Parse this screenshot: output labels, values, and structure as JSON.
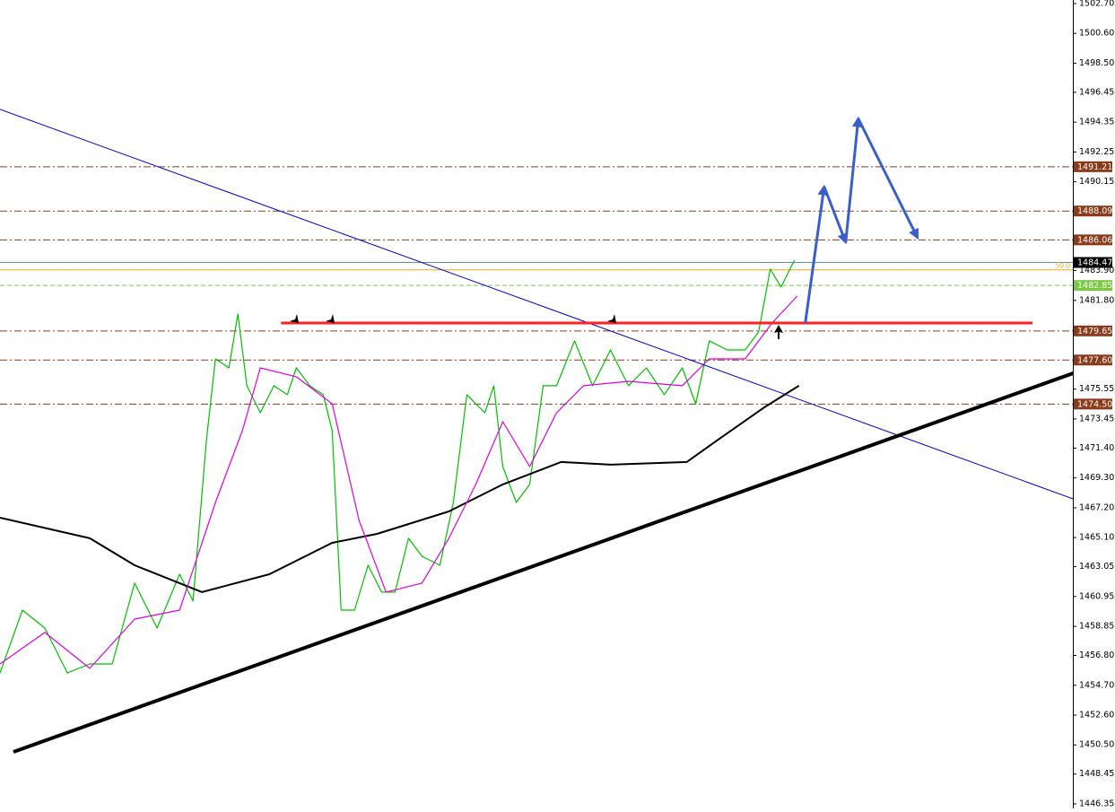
{
  "chart_data": {
    "type": "price",
    "xlim": [
      0,
      239
    ],
    "ylim": [
      1446.03,
      1502.95
    ],
    "yticks": [
      {
        "value": 1502.7,
        "label": "1502.70"
      },
      {
        "value": 1500.6,
        "label": "1500.60"
      },
      {
        "value": 1498.5,
        "label": "1498.50"
      },
      {
        "value": 1496.45,
        "label": "1496.45"
      },
      {
        "value": 1494.35,
        "label": "1494.35"
      },
      {
        "value": 1492.25,
        "label": "1492.25"
      },
      {
        "value": 1490.15,
        "label": "1490.15"
      },
      {
        "value": 1483.9,
        "label": "1483.90"
      },
      {
        "value": 1481.8,
        "label": "1481.80"
      },
      {
        "value": 1475.55,
        "label": "1475.55"
      },
      {
        "value": 1473.45,
        "label": "1473.45"
      },
      {
        "value": 1471.4,
        "label": "1471.40"
      },
      {
        "value": 1469.3,
        "label": "1469.30"
      },
      {
        "value": 1467.2,
        "label": "1467.20"
      },
      {
        "value": 1465.1,
        "label": "1465.10"
      },
      {
        "value": 1463.05,
        "label": "1463.05"
      },
      {
        "value": 1460.95,
        "label": "1460.95"
      },
      {
        "value": 1458.85,
        "label": "1458.85"
      },
      {
        "value": 1456.8,
        "label": "1456.80"
      },
      {
        "value": 1454.7,
        "label": "1454.70"
      },
      {
        "value": 1452.6,
        "label": "1452.60"
      },
      {
        "value": 1450.5,
        "label": "1450.50"
      },
      {
        "value": 1448.45,
        "label": "1448.45"
      },
      {
        "value": 1446.35,
        "label": "1446.35"
      }
    ],
    "series": [
      {
        "name": "price",
        "color": "#00c000",
        "x": [
          0,
          5,
          10,
          15,
          20,
          25,
          30,
          35,
          40,
          43,
          46,
          48,
          51,
          53,
          55,
          58,
          61,
          64,
          66,
          69,
          72,
          74,
          76,
          79,
          82,
          85,
          88,
          91,
          94,
          98,
          101,
          104,
          108,
          110,
          112,
          115,
          118,
          121,
          124,
          128,
          132,
          136,
          140,
          144,
          148,
          152,
          155,
          158,
          162,
          166,
          169,
          171.6,
          174,
          177
        ],
        "values": [
          1455.57,
          1459.99,
          1458.73,
          1455.57,
          1456.2,
          1456.2,
          1461.89,
          1458.73,
          1462.52,
          1460.63,
          1472.0,
          1477.68,
          1477.05,
          1480.84,
          1475.79,
          1473.89,
          1475.79,
          1475.16,
          1477.05,
          1475.79,
          1475.16,
          1472.63,
          1459.99,
          1459.99,
          1463.15,
          1461.26,
          1461.26,
          1465.05,
          1463.78,
          1463.15,
          1467.57,
          1475.16,
          1473.89,
          1475.79,
          1470.1,
          1467.57,
          1468.84,
          1475.79,
          1475.79,
          1478.95,
          1475.79,
          1478.31,
          1475.79,
          1477.05,
          1475.16,
          1477.05,
          1474.52,
          1478.95,
          1478.31,
          1478.31,
          1479.58,
          1484.0,
          1482.74,
          1484.63
        ]
      },
      {
        "name": "ma-slow",
        "color": "#000000",
        "x": [
          0,
          20,
          30,
          45,
          60,
          74,
          84,
          100,
          112,
          125,
          136,
          153,
          160,
          170,
          178
        ],
        "values": [
          1466.5,
          1465.05,
          1463.15,
          1461.26,
          1462.52,
          1464.73,
          1465.36,
          1466.94,
          1468.84,
          1470.42,
          1470.23,
          1470.42,
          1472.0,
          1474.21,
          1475.79
        ]
      },
      {
        "name": "ma-fast",
        "color": "#e000e0",
        "x": [
          0,
          10,
          20,
          30,
          40,
          48,
          54,
          58,
          66,
          74,
          80,
          86,
          94,
          100,
          106,
          112,
          118,
          124,
          130,
          140,
          152,
          158,
          166,
          172,
          177.6
        ],
        "values": [
          1456.2,
          1458.42,
          1455.89,
          1459.36,
          1459.99,
          1467.57,
          1472.63,
          1477.05,
          1476.42,
          1474.52,
          1466.31,
          1461.26,
          1461.89,
          1465.05,
          1468.84,
          1473.26,
          1470.1,
          1473.89,
          1475.79,
          1476.1,
          1475.79,
          1477.68,
          1477.68,
          1480.21,
          1482.1
        ]
      }
    ],
    "levels": [
      {
        "value": 1491.21,
        "label": "1491.21",
        "color": "#8b3a1a",
        "style": "dashdot"
      },
      {
        "value": 1488.09,
        "label": "1488.09",
        "color": "#8b3a1a",
        "style": "dashdot"
      },
      {
        "value": 1486.06,
        "label": "1486.06",
        "color": "#8b3a1a",
        "style": "dashdot"
      },
      {
        "value": 1484.47,
        "label": "1484.47",
        "color": "#000000",
        "style": "current"
      },
      {
        "value": 1482.85,
        "label": "1482.85",
        "color": "#7ac943",
        "style": "dashed"
      },
      {
        "value": 1479.65,
        "label": "1479.65",
        "color": "#8b3a1a",
        "style": "dashdot"
      },
      {
        "value": 1477.6,
        "label": "1477.60",
        "color": "#8b3a1a",
        "style": "dashdot"
      },
      {
        "value": 1474.5,
        "label": "1474.50",
        "color": "#8b3a1a",
        "style": "dashdot"
      }
    ],
    "fib_level": {
      "value": 1483.95,
      "label": "50.0",
      "color": "#f5a623"
    },
    "trendlines": [
      {
        "x": [
          0,
          239
        ],
        "y": [
          1495.25,
          1467.83
        ],
        "color": "#0000cd",
        "width": 1
      },
      {
        "x": [
          3,
          248
        ],
        "y": [
          1450.01,
          1477.68
        ],
        "color": "#000000",
        "width": 4
      },
      {
        "x": [
          62.6,
          230
        ],
        "y": [
          1480.21,
          1480.21
        ],
        "color": "#ff2020",
        "width": 3
      }
    ],
    "forecast": {
      "x": [
        179.4,
        183.6,
        188.4,
        191.2,
        204.4
      ],
      "y": [
        1480.21,
        1489.81,
        1485.89,
        1494.61,
        1486.21
      ],
      "color": "#3a5fcd"
    }
  }
}
